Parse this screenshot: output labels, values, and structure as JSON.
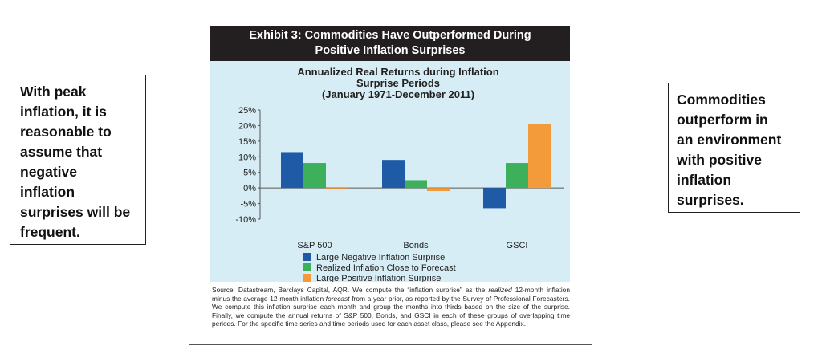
{
  "notes": {
    "left": [
      "With peak",
      "inflation, it is",
      "reasonable to",
      "assume that",
      "negative",
      "inflation",
      "surprises will be",
      "frequent."
    ],
    "right": [
      "Commodities",
      "outperform in",
      "an environment",
      "with positive",
      "inflation",
      "surprises."
    ]
  },
  "exhibit": {
    "header_line1": "Exhibit 3: Commodities Have Outperformed During",
    "header_line2": "Positive Inflation Surprises",
    "source_text": "Source: Datastream, Barclays Capital, AQR. We compute the “inflation surprise” as the realized 12-month inflation minus the average 12-month inflation forecast from a year prior, as reported by the Survey of Professional Forecasters. We compute this inflation surprise each month and group the months into thirds based on the size of the surprise. Finally, we compute the annual returns of S&P 500, Bonds, and GSCI in each of these groups of overlapping time periods. For the specific time series and time periods used for each asset class, please see the Appendix."
  },
  "chart_data": {
    "type": "bar",
    "title_lines": [
      "Annualized Real Returns during Inflation",
      "Surprise Periods",
      "(January 1971-December 2011)"
    ],
    "categories": [
      "S&P 500",
      "Bonds",
      "GSCI"
    ],
    "series": [
      {
        "name": "Large Negative Inflation Surprise",
        "color": "#1f5aa6",
        "values": [
          11.5,
          9.0,
          -6.5
        ]
      },
      {
        "name": "Realized Inflation Close to Forecast",
        "color": "#3cb05a",
        "values": [
          8.0,
          2.5,
          8.0
        ]
      },
      {
        "name": "Large Positive Inflation Surprise",
        "color": "#f39a3b",
        "values": [
          -0.5,
          -1.0,
          20.5
        ]
      }
    ],
    "ylim": [
      -10,
      25
    ],
    "yticks": [
      25,
      20,
      15,
      10,
      5,
      0,
      -5,
      -10
    ],
    "ytick_labels": [
      "25%",
      "20%",
      "15%",
      "10%",
      "5%",
      "0%",
      "-5%",
      "-10%"
    ],
    "legend_position": "bottom",
    "grid": false
  }
}
